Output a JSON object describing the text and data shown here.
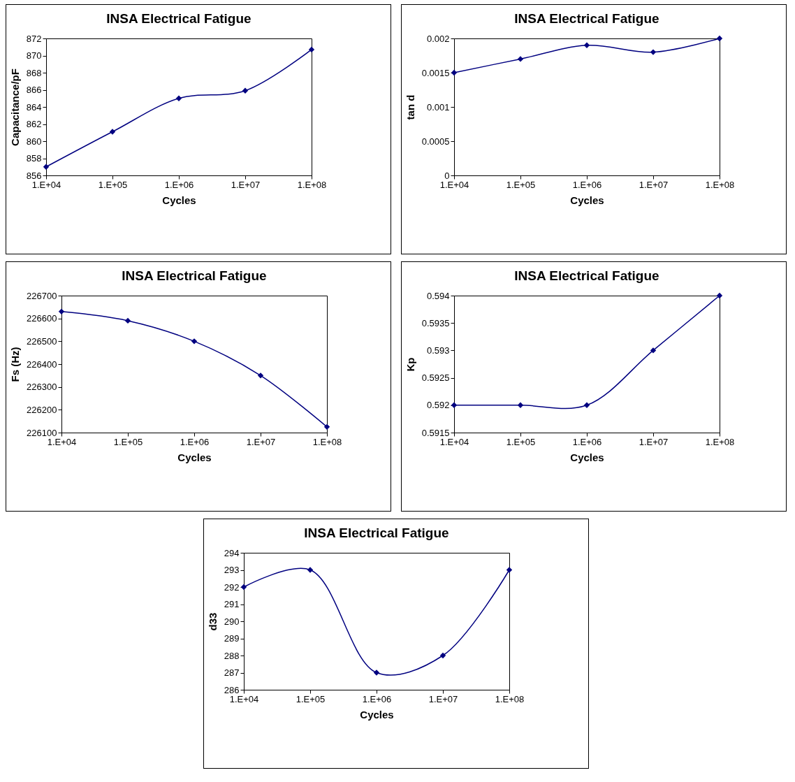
{
  "chart_data": [
    {
      "type": "line",
      "title": "INSA Electrical Fatigue",
      "xlabel": "Cycles",
      "ylabel": "Capacitance/pF",
      "categories": [
        "1.E+04",
        "1.E+05",
        "1.E+06",
        "1.E+07",
        "1.E+08"
      ],
      "grid": false,
      "marker": "diamond",
      "line_style": "solid",
      "series": [
        {
          "color": "#000080",
          "values": [
            857,
            861.1,
            865,
            865.9,
            870.7
          ]
        }
      ],
      "ylim": [
        856,
        872
      ],
      "yticks": [
        856,
        858,
        860,
        862,
        864,
        866,
        868,
        870,
        872
      ]
    },
    {
      "type": "line",
      "title": "INSA Electrical Fatigue",
      "xlabel": "Cycles",
      "ylabel": "tan d",
      "categories": [
        "1.E+04",
        "1.E+05",
        "1.E+06",
        "1.E+07",
        "1.E+08"
      ],
      "grid": false,
      "marker": "diamond",
      "line_style": "solid",
      "series": [
        {
          "color": "#000080",
          "values": [
            0.0015,
            0.0017,
            0.0019,
            0.0018,
            0.002
          ]
        }
      ],
      "ylim": [
        0,
        0.002
      ],
      "yticks": [
        0,
        0.0005,
        0.001,
        0.0015,
        0.002
      ]
    },
    {
      "type": "line",
      "title": "INSA Electrical Fatigue",
      "xlabel": "Cycles",
      "ylabel": "Fs (Hz)",
      "categories": [
        "1.E+04",
        "1.E+05",
        "1.E+06",
        "1.E+07",
        "1.E+08"
      ],
      "grid": false,
      "marker": "diamond",
      "line_style": "solid",
      "series": [
        {
          "color": "#000080",
          "values": [
            226630,
            226590,
            226500,
            226350,
            226125
          ]
        }
      ],
      "ylim": [
        226100,
        226700
      ],
      "yticks": [
        226100,
        226200,
        226300,
        226400,
        226500,
        226600,
        226700
      ]
    },
    {
      "type": "line",
      "title": "INSA Electrical Fatigue",
      "xlabel": "Cycles",
      "ylabel": "Kp",
      "categories": [
        "1.E+04",
        "1.E+05",
        "1.E+06",
        "1.E+07",
        "1.E+08"
      ],
      "grid": false,
      "marker": "diamond",
      "line_style": "solid",
      "series": [
        {
          "color": "#000080",
          "values": [
            0.592,
            0.592,
            0.592,
            0.593,
            0.594
          ]
        }
      ],
      "ylim": [
        0.5915,
        0.594
      ],
      "yticks": [
        0.5915,
        0.592,
        0.5925,
        0.593,
        0.5935,
        0.594
      ]
    },
    {
      "type": "line",
      "title": "INSA Electrical Fatigue",
      "xlabel": "Cycles",
      "ylabel": "d33",
      "categories": [
        "1.E+04",
        "1.E+05",
        "1.E+06",
        "1.E+07",
        "1.E+08"
      ],
      "grid": false,
      "marker": "diamond",
      "line_style": "solid",
      "series": [
        {
          "color": "#000080",
          "values": [
            292,
            293,
            287,
            288,
            293
          ]
        }
      ],
      "ylim": [
        286,
        294
      ],
      "yticks": [
        286,
        287,
        288,
        289,
        290,
        291,
        292,
        293,
        294
      ]
    }
  ]
}
